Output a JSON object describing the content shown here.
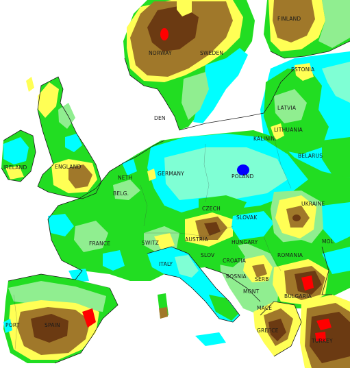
{
  "map": {
    "colors": {
      "sea": "#ffffff",
      "very_wet": "#0000ff",
      "wet": "#00ffff",
      "moist": "#7fffd4",
      "normal": "#22dd22",
      "slightly_dry": "#90ee90",
      "dry": "#ffff55",
      "very_dry": "#a0782a",
      "severely_dry": "#6b3a12",
      "extreme_dry": "#ff0000",
      "coastline": "#1a1a1a"
    },
    "labels": {
      "finland": "FINLAND",
      "norway": "NORWAY",
      "sweden": "SWEDEN",
      "estonia": "ESTONIA",
      "latvia": "LATVIA",
      "lithuania": "LITHUANIA",
      "kalinin": "KALININ.",
      "belarus": "BELARUS",
      "ireland": "IRELAND",
      "england": "ENGLAND",
      "den": "DEN",
      "germany": "GERMANY",
      "neth": "NETH",
      "belg": "BELG.",
      "poland": "POLAND",
      "czech": "CZECH",
      "slovak": "SLOVAK",
      "ukraine": "UKRAINE",
      "france": "FRANCE",
      "switz": "SWITZ",
      "austria": "AUSTRIA",
      "hungary": "HUNGARY",
      "mol": "MOL",
      "romania": "ROMANIA",
      "slov": "SLOV",
      "croatia": "CROATIA",
      "bosnia": "BOSNIA",
      "serb": "SERB",
      "italy": "ITALY",
      "mont": "MONT",
      "bulgaria": "BULGARIA",
      "mace": "MACE",
      "greece": "GREECE",
      "turkey": "TURKEY",
      "port": "PORT",
      "spain": "SPAIN"
    }
  }
}
